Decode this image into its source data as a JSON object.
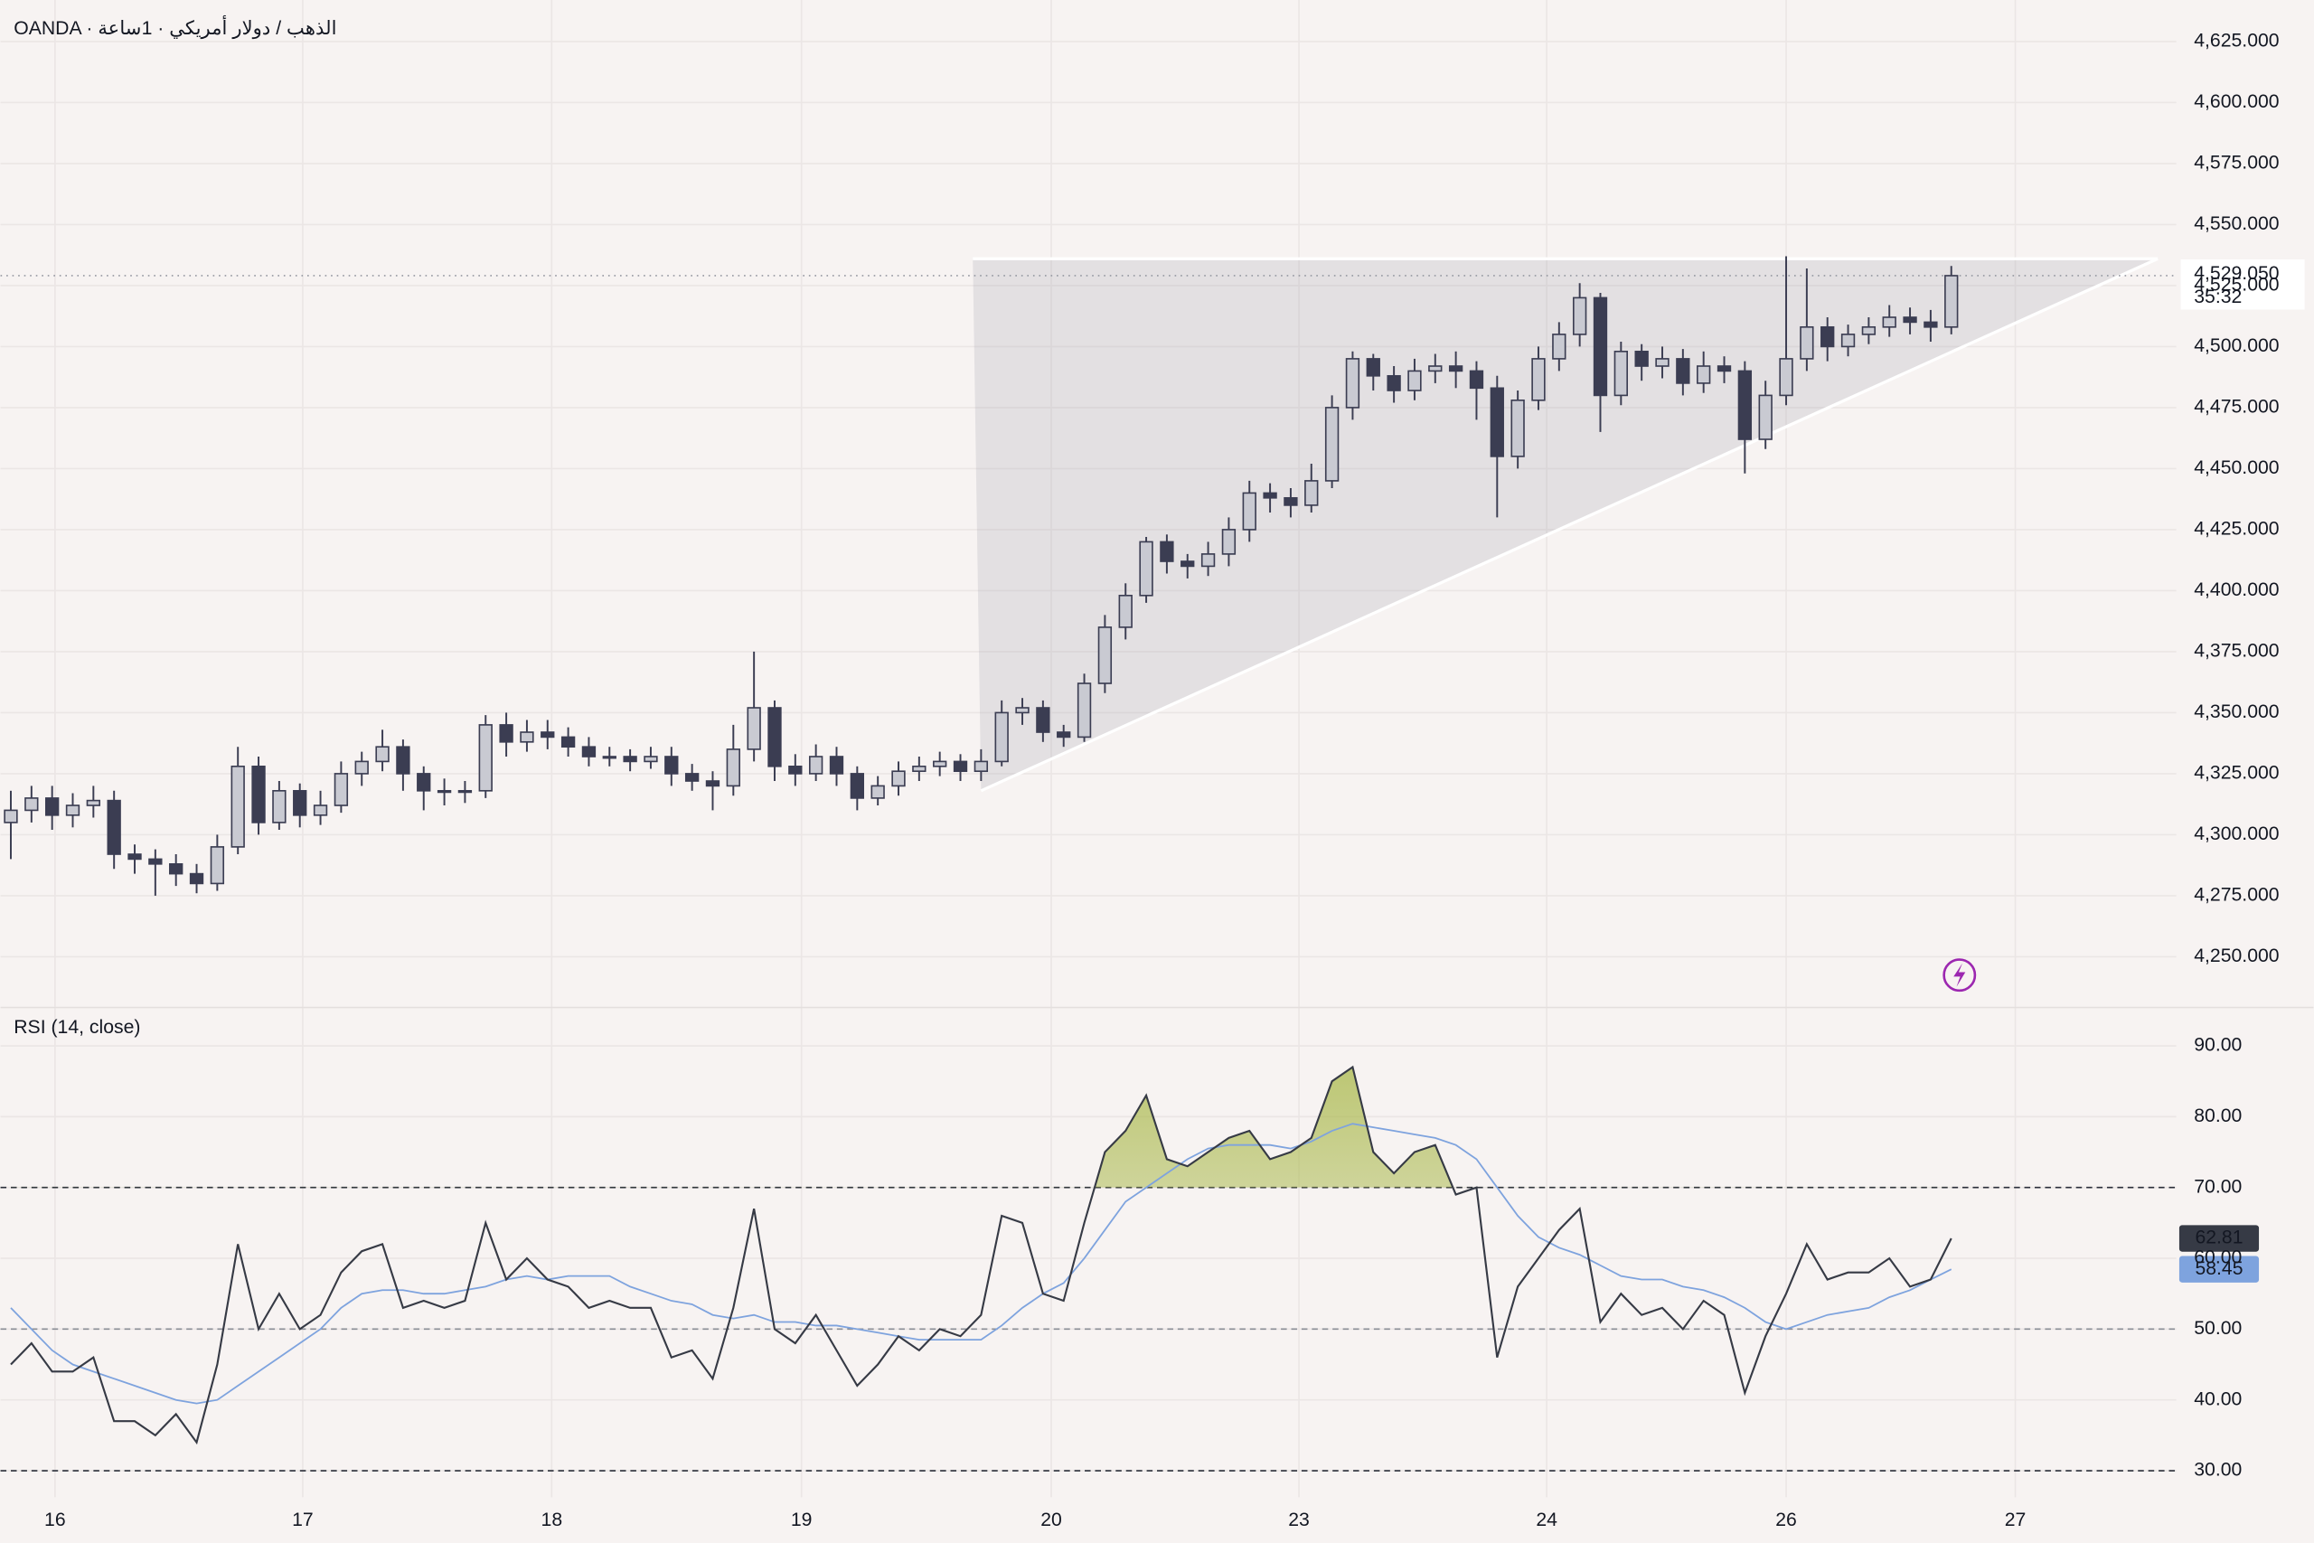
{
  "chart_data": [
    {
      "type": "candlestick",
      "title": "OANDA · الذهب / دولار أمريكي · 1ساعة",
      "xlim": [
        -0.5,
        104.9
      ],
      "xticks": [
        {
          "value": 2.14,
          "label": "16"
        },
        {
          "value": 14.14,
          "label": "17"
        },
        {
          "value": 26.2,
          "label": "18"
        },
        {
          "value": 38.3,
          "label": "19"
        },
        {
          "value": 50.4,
          "label": "20"
        },
        {
          "value": 62.4,
          "label": "23"
        },
        {
          "value": 74.4,
          "label": "24"
        },
        {
          "value": 86,
          "label": "26"
        },
        {
          "value": 97.1,
          "label": "27"
        }
      ],
      "ylim": [
        4231,
        4642
      ],
      "yticks": [
        {
          "value": 4250,
          "label": "4,250.000"
        },
        {
          "value": 4275,
          "label": "4,275.000"
        },
        {
          "value": 4300,
          "label": "4,300.000"
        },
        {
          "value": 4325,
          "label": "4,325.000"
        },
        {
          "value": 4350,
          "label": "4,350.000"
        },
        {
          "value": 4375,
          "label": "4,375.000"
        },
        {
          "value": 4400,
          "label": "4,400.000"
        },
        {
          "value": 4425,
          "label": "4,425.000"
        },
        {
          "value": 4450,
          "label": "4,450.000"
        },
        {
          "value": 4475,
          "label": "4,475.000"
        },
        {
          "value": 4500,
          "label": "4,500.000"
        },
        {
          "value": 4525,
          "label": "4,525.000"
        },
        {
          "value": 4550,
          "label": "4,550.000"
        },
        {
          "value": 4575,
          "label": "4,575.000"
        },
        {
          "value": 4600,
          "label": "4,600.000"
        },
        {
          "value": 4625,
          "label": "4,625.000"
        }
      ],
      "grid": true,
      "candles": {
        "up_color": "#c9cad2",
        "down_color": "#3b3d52",
        "open": [
          4305,
          4310,
          4315,
          4308,
          4312,
          4314,
          4292,
          4290,
          4288,
          4284,
          4280,
          4295,
          4328,
          4305,
          4318,
          4308,
          4312,
          4325,
          4330,
          4336,
          4325,
          4318,
          4318,
          4318,
          4345,
          4338,
          4342,
          4340,
          4336,
          4332,
          4332,
          4330,
          4332,
          4325,
          4322,
          4320,
          4335,
          4352,
          4328,
          4325,
          4332,
          4325,
          4315,
          4320,
          4326,
          4328,
          4330,
          4326,
          4330,
          4350,
          4352,
          4342,
          4340,
          4362,
          4385,
          4398,
          4420,
          4412,
          4410,
          4415,
          4425,
          4440,
          4438,
          4435,
          4445,
          4475,
          4495,
          4488,
          4482,
          4490,
          4492,
          4490,
          4483,
          4455,
          4478,
          4495,
          4505,
          4520,
          4480,
          4498,
          4492,
          4495,
          4485,
          4492,
          4490,
          4462,
          4480,
          4495,
          4508,
          4500,
          4505,
          4508,
          4512,
          4510,
          4508
        ],
        "high": [
          4318,
          4320,
          4320,
          4317,
          4320,
          4318,
          4296,
          4294,
          4292,
          4288,
          4300,
          4336,
          4332,
          4322,
          4321,
          4318,
          4330,
          4334,
          4343,
          4339,
          4328,
          4323,
          4322,
          4349,
          4350,
          4347,
          4347,
          4344,
          4340,
          4336,
          4335,
          4336,
          4336,
          4329,
          4326,
          4345,
          4375,
          4355,
          4333,
          4337,
          4336,
          4328,
          4324,
          4330,
          4332,
          4334,
          4333,
          4335,
          4355,
          4356,
          4355,
          4345,
          4366,
          4390,
          4403,
          4422,
          4423,
          4415,
          4420,
          4430,
          4445,
          4444,
          4442,
          4452,
          4480,
          4498,
          4497,
          4492,
          4495,
          4497,
          4498,
          4494,
          4488,
          4482,
          4500,
          4510,
          4526,
          4522,
          4502,
          4501,
          4500,
          4499,
          4498,
          4496,
          4494,
          4486,
          4537,
          4532,
          4512,
          4509,
          4512,
          4517,
          4516,
          4515,
          4533
        ],
        "low": [
          4290,
          4305,
          4302,
          4303,
          4307,
          4286,
          4284,
          4275,
          4279,
          4276,
          4277,
          4292,
          4300,
          4302,
          4303,
          4304,
          4309,
          4320,
          4326,
          4318,
          4310,
          4312,
          4313,
          4315,
          4332,
          4334,
          4335,
          4332,
          4328,
          4328,
          4326,
          4327,
          4320,
          4318,
          4310,
          4316,
          4330,
          4322,
          4320,
          4322,
          4320,
          4310,
          4312,
          4316,
          4322,
          4324,
          4322,
          4322,
          4328,
          4345,
          4338,
          4336,
          4338,
          4358,
          4380,
          4395,
          4407,
          4405,
          4406,
          4410,
          4420,
          4432,
          4430,
          4432,
          4442,
          4470,
          4482,
          4477,
          4478,
          4485,
          4483,
          4470,
          4430,
          4450,
          4474,
          4490,
          4500,
          4465,
          4476,
          4486,
          4487,
          4480,
          4481,
          4485,
          4448,
          4458,
          4476,
          4490,
          4494,
          4496,
          4501,
          4504,
          4505,
          4502,
          4505
        ],
        "close": [
          4310,
          4315,
          4308,
          4312,
          4314,
          4292,
          4290,
          4288,
          4284,
          4280,
          4295,
          4328,
          4305,
          4318,
          4308,
          4312,
          4325,
          4330,
          4336,
          4325,
          4318,
          4318,
          4318,
          4345,
          4338,
          4342,
          4340,
          4336,
          4332,
          4332,
          4330,
          4332,
          4325,
          4322,
          4320,
          4335,
          4352,
          4328,
          4325,
          4332,
          4325,
          4315,
          4320,
          4326,
          4328,
          4330,
          4326,
          4330,
          4350,
          4352,
          4342,
          4340,
          4362,
          4385,
          4398,
          4420,
          4412,
          4410,
          4415,
          4425,
          4440,
          4438,
          4435,
          4445,
          4475,
          4495,
          4488,
          4482,
          4490,
          4492,
          4490,
          4483,
          4455,
          4478,
          4495,
          4505,
          4520,
          4480,
          4498,
          4492,
          4495,
          4485,
          4492,
          4490,
          4462,
          4480,
          4495,
          4508,
          4500,
          4505,
          4508,
          4512,
          4510,
          4508,
          4529.05
        ]
      },
      "last_price_label": "4,529.050",
      "countdown": "35:32",
      "drawing": {
        "type": "triangle",
        "color": "#ffffff",
        "points": [
          [
            46.6,
            4536
          ],
          [
            104,
            4536
          ],
          [
            47,
            4318
          ]
        ]
      }
    },
    {
      "type": "line",
      "title": "RSI (14, close)",
      "ylim": [
        26.25,
        95
      ],
      "yticks": [
        {
          "value": 30,
          "label": "30.00"
        },
        {
          "value": 40,
          "label": "40.00"
        },
        {
          "value": 50,
          "label": "50.00"
        },
        {
          "value": 60,
          "label": "60.00"
        },
        {
          "value": 70,
          "label": "70.00"
        },
        {
          "value": 80,
          "label": "80.00"
        },
        {
          "value": 90,
          "label": "90.00"
        }
      ],
      "bands": [
        70,
        50,
        30
      ],
      "overbought_color": "#a9b84a",
      "series": [
        {
          "color": "#363a45",
          "values": [
            45,
            48,
            44,
            44,
            46,
            37,
            37,
            35,
            38,
            34,
            45,
            62,
            50,
            55,
            50,
            52,
            58,
            61,
            62,
            53,
            54,
            53,
            54,
            65,
            57,
            60,
            57,
            56,
            53,
            54,
            53,
            53,
            46,
            47,
            43,
            53,
            67,
            50,
            48,
            52,
            47,
            42,
            45,
            49,
            47,
            50,
            49,
            52,
            66,
            65,
            55,
            54,
            65,
            75,
            78,
            83,
            74,
            73,
            75,
            77,
            78,
            74,
            75,
            77,
            85,
            87,
            75,
            72,
            75,
            76,
            69,
            70,
            46,
            56,
            60,
            64,
            67,
            51,
            55,
            52,
            53,
            50,
            54,
            52,
            41,
            49,
            55,
            62,
            57,
            58,
            58,
            60,
            56,
            57,
            62.81
          ]
        },
        {
          "color": "#7ea3de",
          "values": [
            53,
            50,
            47,
            45,
            44,
            43,
            42,
            41,
            40,
            39.5,
            40,
            42,
            44,
            46,
            48,
            50,
            53,
            55,
            55.5,
            55.5,
            55,
            55,
            55.5,
            56,
            57,
            57.5,
            57,
            57.5,
            57.5,
            57.5,
            56,
            55,
            54,
            53.5,
            52,
            51.5,
            52,
            51,
            51,
            50.5,
            50.5,
            50,
            49.5,
            49,
            48.5,
            48.5,
            48.5,
            48.5,
            50.5,
            53,
            55,
            56.5,
            60,
            64,
            68,
            70,
            72,
            74,
            75.5,
            76,
            76,
            76,
            75.5,
            76.5,
            78,
            79,
            78.5,
            78,
            77.5,
            77,
            76,
            74,
            70,
            66,
            63,
            61.5,
            60.5,
            59,
            57.5,
            57,
            57,
            56,
            55.5,
            54.5,
            53,
            51,
            50,
            51,
            52,
            52.5,
            53,
            54.5,
            55.5,
            57,
            58.45
          ]
        }
      ]
    }
  ]
}
